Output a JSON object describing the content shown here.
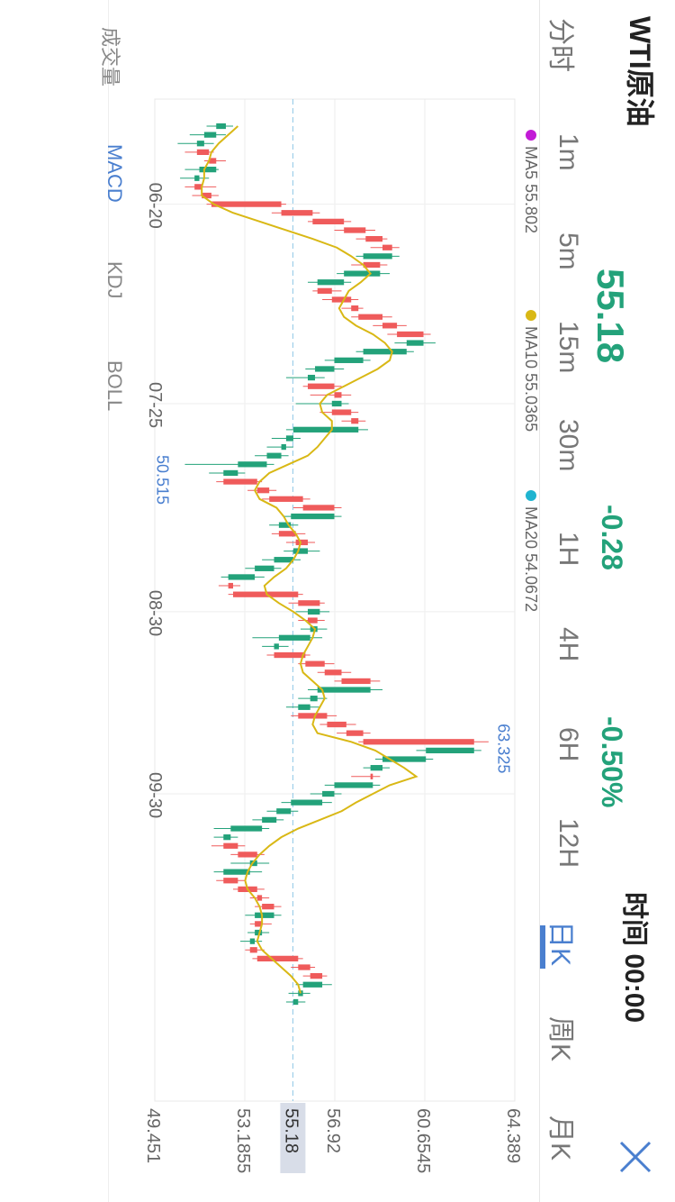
{
  "header": {
    "title": "WTI原油",
    "price": "55.18",
    "change": "-0.28",
    "change_pct": "-0.50%",
    "time_label": "时间 00:00",
    "colors": {
      "up": "#ef5b5b",
      "down": "#23a27a",
      "accent": "#4a7fcf"
    }
  },
  "period_tabs": [
    {
      "label": "分时"
    },
    {
      "label": "1m"
    },
    {
      "label": "5m"
    },
    {
      "label": "15m"
    },
    {
      "label": "30m"
    },
    {
      "label": "1H"
    },
    {
      "label": "4H"
    },
    {
      "label": "6H"
    },
    {
      "label": "12H"
    },
    {
      "label": "日K",
      "active": true
    },
    {
      "label": "周K"
    },
    {
      "label": "月K"
    }
  ],
  "indicator_tabs": [
    {
      "label": "成交量"
    },
    {
      "label": "MACD",
      "active": true
    },
    {
      "label": "KDJ"
    },
    {
      "label": "BOLL"
    }
  ],
  "chart_data": {
    "type": "candlestick",
    "ma_legend": [
      {
        "name": "MA5",
        "value": "55.802",
        "color": "#c21bd6"
      },
      {
        "name": "MA10",
        "value": "55.0365",
        "color": "#d9b815"
      },
      {
        "name": "MA20",
        "value": "54.0672",
        "color": "#1fb4d0"
      }
    ],
    "y_ticks": [
      "64.389",
      "60.6545",
      "56.92",
      "53.1855",
      "49.451"
    ],
    "ylim": [
      49.451,
      64.389
    ],
    "last_price": "55.18",
    "x_ticks": [
      {
        "label": "06-20",
        "index": 9
      },
      {
        "label": "07-25",
        "index": 32
      },
      {
        "label": "08-30",
        "index": 56
      },
      {
        "label": "09-30",
        "index": 77
      }
    ],
    "max_marker": {
      "label": "63.325",
      "index": 71
    },
    "min_marker": {
      "label": "50.515",
      "index": 40
    },
    "candles": [
      [
        52.4,
        52.0,
        52.7,
        51.6
      ],
      [
        52.0,
        51.5,
        52.4,
        50.9
      ],
      [
        51.5,
        51.2,
        51.9,
        50.4
      ],
      [
        51.2,
        51.7,
        51.9,
        50.7
      ],
      [
        51.7,
        52.0,
        52.4,
        51.5
      ],
      [
        52.0,
        51.3,
        52.1,
        50.7
      ],
      [
        51.3,
        51.1,
        51.7,
        50.5
      ],
      [
        51.1,
        51.4,
        52.0,
        50.7
      ],
      [
        51.4,
        51.8,
        52.1,
        51.0
      ],
      [
        51.8,
        54.7,
        54.9,
        51.6
      ],
      [
        54.7,
        56.0,
        56.3,
        54.3
      ],
      [
        56.0,
        57.3,
        57.6,
        55.8
      ],
      [
        57.3,
        58.2,
        58.6,
        56.9
      ],
      [
        58.2,
        58.9,
        59.1,
        57.8
      ],
      [
        58.9,
        59.3,
        59.6,
        58.4
      ],
      [
        59.3,
        58.1,
        59.6,
        57.8
      ],
      [
        58.1,
        58.8,
        59.1,
        57.6
      ],
      [
        58.8,
        57.3,
        59.2,
        57.0
      ],
      [
        57.3,
        56.2,
        57.6,
        55.8
      ],
      [
        56.2,
        56.8,
        57.2,
        56.0
      ],
      [
        56.8,
        57.6,
        57.9,
        56.4
      ],
      [
        57.6,
        57.9,
        58.1,
        57.2
      ],
      [
        57.9,
        58.9,
        59.3,
        57.6
      ],
      [
        58.9,
        59.5,
        59.9,
        58.5
      ],
      [
        59.5,
        60.6,
        60.9,
        59.1
      ],
      [
        60.6,
        59.9,
        61.1,
        59.4
      ],
      [
        59.9,
        58.1,
        60.2,
        57.8
      ],
      [
        58.1,
        56.9,
        58.4,
        56.5
      ],
      [
        56.9,
        56.1,
        57.3,
        55.7
      ],
      [
        56.1,
        55.8,
        56.5,
        54.9
      ],
      [
        55.8,
        56.9,
        57.2,
        55.6
      ],
      [
        56.9,
        57.2,
        57.6,
        55.9
      ],
      [
        57.2,
        56.8,
        57.5,
        55.3
      ],
      [
        56.8,
        57.6,
        57.9,
        56.3
      ],
      [
        57.6,
        57.9,
        58.2,
        57.2
      ],
      [
        57.9,
        55.2,
        58.3,
        54.9
      ],
      [
        55.2,
        54.9,
        55.5,
        54.3
      ],
      [
        54.9,
        54.7,
        55.2,
        54.1
      ],
      [
        54.7,
        54.1,
        55.0,
        53.6
      ],
      [
        54.1,
        52.9,
        54.4,
        50.7
      ],
      [
        52.9,
        52.3,
        53.2,
        51.7
      ],
      [
        52.3,
        53.7,
        53.9,
        52.0
      ],
      [
        53.7,
        54.2,
        54.5,
        53.3
      ],
      [
        54.2,
        55.6,
        55.9,
        53.9
      ],
      [
        55.6,
        56.9,
        57.2,
        55.2
      ],
      [
        56.9,
        55.1,
        57.2,
        54.8
      ],
      [
        55.1,
        54.6,
        55.4,
        54.2
      ],
      [
        54.6,
        55.3,
        55.7,
        54.3
      ],
      [
        55.3,
        55.8,
        56.1,
        54.9
      ],
      [
        55.8,
        55.2,
        56.3,
        54.8
      ],
      [
        55.2,
        54.4,
        55.5,
        53.9
      ],
      [
        54.4,
        53.6,
        54.7,
        53.2
      ],
      [
        53.6,
        52.5,
        54.0,
        52.2
      ],
      [
        52.5,
        52.7,
        53.0,
        52.1
      ],
      [
        52.7,
        55.4,
        55.6,
        52.5
      ],
      [
        55.4,
        56.3,
        56.5,
        55.0
      ],
      [
        56.3,
        55.8,
        56.7,
        55.3
      ],
      [
        55.8,
        56.2,
        56.5,
        55.4
      ],
      [
        56.2,
        55.9,
        56.6,
        55.5
      ],
      [
        55.9,
        54.6,
        56.4,
        53.5
      ],
      [
        54.6,
        54.4,
        55.0,
        53.9
      ],
      [
        54.4,
        55.7,
        55.9,
        54.1
      ],
      [
        55.7,
        56.5,
        56.9,
        55.4
      ],
      [
        56.5,
        57.2,
        57.6,
        56.2
      ],
      [
        57.2,
        58.4,
        58.8,
        56.9
      ],
      [
        58.4,
        56.2,
        58.9,
        55.8
      ],
      [
        56.2,
        55.9,
        56.6,
        55.4
      ],
      [
        55.9,
        55.4,
        56.3,
        54.9
      ],
      [
        55.4,
        56.6,
        57.0,
        55.1
      ],
      [
        56.6,
        57.4,
        57.8,
        56.3
      ],
      [
        57.4,
        58.1,
        58.4,
        57.0
      ],
      [
        58.1,
        62.7,
        63.3,
        57.9
      ],
      [
        62.7,
        60.7,
        63.0,
        60.3
      ],
      [
        60.7,
        58.9,
        61.0,
        58.6
      ],
      [
        58.9,
        58.4,
        59.2,
        58.1
      ],
      [
        58.4,
        58.5,
        58.8,
        57.6
      ],
      [
        58.5,
        56.9,
        58.8,
        56.5
      ],
      [
        56.9,
        56.4,
        57.2,
        55.9
      ],
      [
        56.4,
        55.1,
        56.8,
        54.7
      ],
      [
        55.1,
        54.5,
        55.4,
        54.1
      ],
      [
        54.5,
        53.9,
        54.8,
        53.5
      ],
      [
        53.9,
        52.6,
        54.2,
        51.9
      ],
      [
        52.6,
        52.3,
        52.9,
        51.9
      ],
      [
        52.3,
        52.9,
        53.2,
        51.8
      ],
      [
        52.9,
        53.7,
        54.0,
        52.6
      ],
      [
        53.7,
        53.4,
        54.2,
        52.6
      ],
      [
        53.4,
        52.3,
        53.9,
        51.9
      ],
      [
        52.3,
        52.9,
        53.2,
        52.0
      ],
      [
        52.9,
        53.7,
        54.0,
        52.7
      ],
      [
        53.7,
        53.9,
        54.2,
        53.4
      ],
      [
        53.9,
        54.4,
        54.7,
        53.6
      ],
      [
        54.4,
        53.6,
        54.7,
        53.2
      ],
      [
        53.6,
        53.9,
        54.3,
        53.4
      ],
      [
        53.9,
        53.6,
        54.2,
        53.3
      ],
      [
        53.6,
        53.4,
        53.9,
        53.0
      ],
      [
        53.4,
        53.7,
        54.0,
        53.2
      ],
      [
        53.7,
        55.4,
        55.6,
        53.5
      ],
      [
        55.4,
        55.9,
        56.1,
        55.1
      ],
      [
        55.9,
        56.4,
        56.6,
        55.6
      ],
      [
        56.4,
        55.6,
        56.8,
        55.3
      ],
      [
        55.6,
        55.4,
        55.9,
        55.0
      ],
      [
        55.4,
        55.2,
        55.7,
        54.9
      ]
    ],
    "ma5": [
      52.9,
      52.5,
      52.1,
      51.8,
      51.7,
      51.5,
      51.5,
      51.4,
      51.4,
      51.9,
      52.7,
      53.8,
      54.9,
      56.0,
      57.0,
      57.6,
      58.1,
      58.4,
      58.0,
      57.5,
      57.3,
      57.1,
      57.3,
      57.8,
      58.5,
      59.0,
      59.3,
      59.2,
      58.7,
      58.0,
      57.3,
      56.6,
      56.3,
      56.4,
      56.8,
      56.8,
      56.5,
      56.2,
      55.8,
      55.0,
      54.2,
      53.8,
      53.6,
      53.8,
      54.5,
      54.8,
      55.0,
      55.3,
      55.5,
      55.4,
      55.2,
      54.9,
      54.4,
      54.0,
      54.1,
      54.6,
      55.2,
      55.7,
      56.1,
      56.0,
      55.8,
      55.6,
      55.5,
      55.6,
      56.0,
      56.4,
      56.5,
      56.3,
      56.1,
      56.0,
      56.2,
      57.6,
      58.6,
      59.2,
      59.8,
      60.3,
      59.2,
      58.5,
      57.8,
      57.2,
      56.3,
      55.4,
      54.7,
      54.2,
      53.8,
      53.5,
      53.3,
      53.2,
      53.3,
      53.6,
      53.8,
      53.9,
      53.9,
      53.8,
      53.7,
      53.9,
      54.3,
      54.7,
      55.1,
      55.4,
      55.5
    ]
  }
}
